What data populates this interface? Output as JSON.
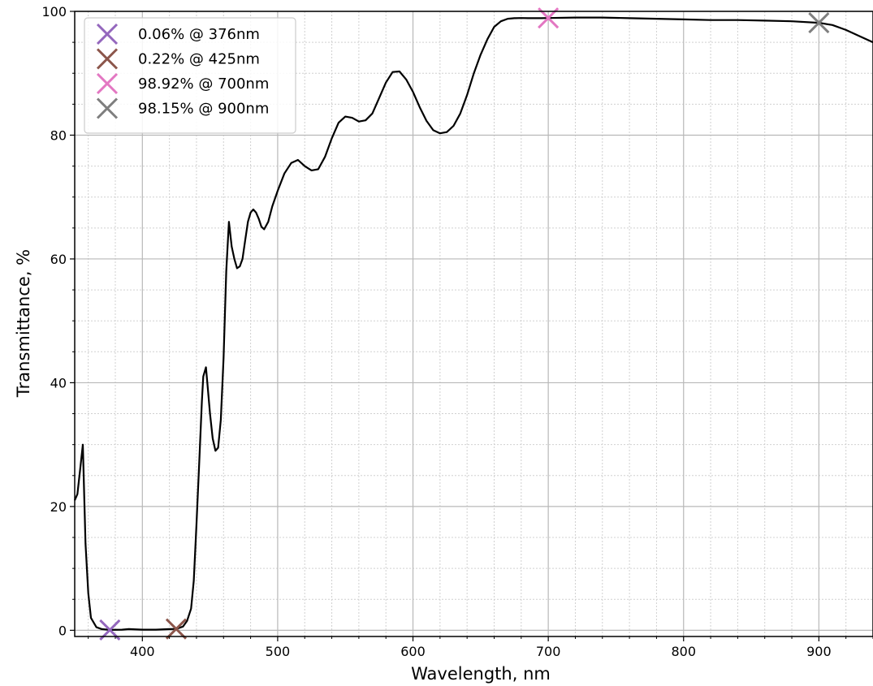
{
  "chart_data": {
    "type": "line",
    "title": "",
    "xlabel": "Wavelength, nm",
    "ylabel": "Transmittance, %",
    "xlim": [
      350,
      940
    ],
    "ylim": [
      -1,
      100
    ],
    "xticks": [
      400,
      500,
      600,
      700,
      800,
      900
    ],
    "yticks": [
      0,
      20,
      40,
      60,
      80,
      100
    ],
    "grid": {
      "major": true,
      "minor": true,
      "minor_x_step": 20,
      "minor_y_step": 5
    },
    "series": [
      {
        "color": "#000000",
        "x": [
          350,
          352,
          354,
          356,
          358,
          360,
          362,
          366,
          370,
          376,
          385,
          390,
          400,
          410,
          420,
          425,
          430,
          433,
          436,
          438,
          440,
          442,
          444,
          445,
          447,
          448,
          450,
          452,
          454,
          456,
          458,
          460,
          462,
          464,
          466,
          468,
          470,
          472,
          474,
          476,
          478,
          480,
          482,
          484,
          486,
          488,
          490,
          493,
          496,
          500,
          505,
          510,
          515,
          520,
          525,
          530,
          535,
          540,
          545,
          550,
          555,
          560,
          565,
          570,
          575,
          580,
          585,
          590,
          595,
          600,
          605,
          610,
          615,
          620,
          625,
          630,
          635,
          640,
          645,
          650,
          655,
          660,
          665,
          670,
          675,
          680,
          685,
          690,
          695,
          700,
          720,
          740,
          760,
          780,
          800,
          820,
          840,
          860,
          880,
          900,
          910,
          920,
          930,
          940
        ],
        "y": [
          21,
          22,
          26,
          30,
          14,
          6,
          2,
          0.5,
          0.2,
          0.06,
          0.1,
          0.2,
          0.1,
          0.1,
          0.2,
          0.22,
          0.6,
          1.5,
          3.5,
          8,
          17,
          27,
          37,
          41,
          42.5,
          40,
          35,
          31,
          29,
          29.5,
          34,
          44,
          58,
          66,
          62,
          60,
          58.5,
          58.8,
          60,
          63,
          66,
          67.5,
          68,
          67.5,
          66.5,
          65.2,
          64.8,
          66,
          68.5,
          71,
          73.8,
          75.5,
          76,
          75,
          74.3,
          74.5,
          76.5,
          79.5,
          82,
          83,
          82.8,
          82.2,
          82.4,
          83.5,
          86,
          88.5,
          90.2,
          90.3,
          89,
          87,
          84.5,
          82.3,
          80.8,
          80.3,
          80.5,
          81.5,
          83.5,
          86.5,
          90,
          93,
          95.5,
          97.5,
          98.4,
          98.8,
          98.9,
          98.92,
          98.9,
          98.9,
          98.9,
          98.92,
          99,
          99,
          98.9,
          98.8,
          98.7,
          98.6,
          98.6,
          98.5,
          98.4,
          98.15,
          97.8,
          97,
          96,
          95
        ]
      }
    ],
    "markers": [
      {
        "label": "0.06% @ 376nm",
        "x": 376,
        "y": 0.06,
        "color": "#9467bd"
      },
      {
        "label": "0.22% @ 425nm",
        "x": 425,
        "y": 0.22,
        "color": "#8c564b"
      },
      {
        "label": "98.92% @ 700nm",
        "x": 700,
        "y": 98.92,
        "color": "#e377c2"
      },
      {
        "label": "98.15% @ 900nm",
        "x": 900,
        "y": 98.15,
        "color": "#7f7f7f"
      }
    ],
    "legend_position": "top-left"
  }
}
